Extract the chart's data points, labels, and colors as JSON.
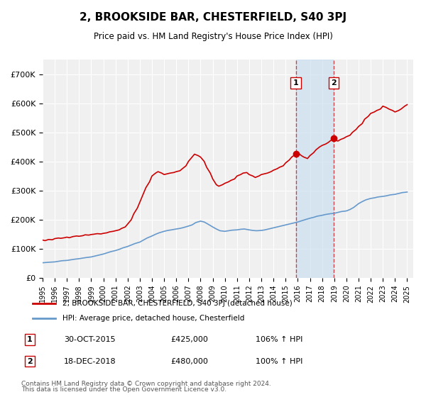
{
  "title": "2, BROOKSIDE BAR, CHESTERFIELD, S40 3PJ",
  "subtitle": "Price paid vs. HM Land Registry's House Price Index (HPI)",
  "title_fontsize": 13,
  "subtitle_fontsize": 10,
  "background_color": "#ffffff",
  "plot_background_color": "#f0f0f0",
  "grid_color": "#ffffff",
  "red_line_color": "#cc0000",
  "blue_line_color": "#6699cc",
  "shade_color": "#cce0f0",
  "marker_color": "#cc0000",
  "ylim": [
    0,
    750000
  ],
  "yticks": [
    0,
    100000,
    200000,
    300000,
    400000,
    500000,
    600000,
    700000
  ],
  "ytick_labels": [
    "£0",
    "£100K",
    "£200K",
    "£300K",
    "£400K",
    "£500K",
    "£600K",
    "£700K"
  ],
  "xlim_start": 1995.0,
  "xlim_end": 2025.5,
  "xticks": [
    1995,
    1996,
    1997,
    1998,
    1999,
    2000,
    2001,
    2002,
    2003,
    2004,
    2005,
    2006,
    2007,
    2008,
    2009,
    2010,
    2011,
    2012,
    2013,
    2014,
    2015,
    2016,
    2017,
    2018,
    2019,
    2020,
    2021,
    2022,
    2023,
    2024,
    2025
  ],
  "event1_x": 2015.83,
  "event1_label": "1",
  "event1_date": "30-OCT-2015",
  "event1_price": "£425,000",
  "event1_hpi": "106% ↑ HPI",
  "event2_x": 2018.96,
  "event2_label": "2",
  "event2_date": "18-DEC-2018",
  "event2_price": "£480,000",
  "event2_hpi": "100% ↑ HPI",
  "legend_line1": "2, BROOKSIDE BAR, CHESTERFIELD, S40 3PJ (detached house)",
  "legend_line2": "HPI: Average price, detached house, Chesterfield",
  "footer1": "Contains HM Land Registry data © Crown copyright and database right 2024.",
  "footer2": "This data is licensed under the Open Government Licence v3.0.",
  "red_x": [
    1995.0,
    1995.2,
    1995.5,
    1995.8,
    1996.0,
    1996.3,
    1996.5,
    1996.8,
    1997.0,
    1997.2,
    1997.5,
    1997.8,
    1998.0,
    1998.3,
    1998.5,
    1998.8,
    1999.0,
    1999.2,
    1999.5,
    1999.8,
    2000.0,
    2000.3,
    2000.5,
    2000.8,
    2001.0,
    2001.3,
    2001.5,
    2001.8,
    2002.0,
    2002.3,
    2002.5,
    2002.8,
    2003.0,
    2003.3,
    2003.5,
    2003.8,
    2004.0,
    2004.3,
    2004.5,
    2004.8,
    2005.0,
    2005.3,
    2005.5,
    2005.8,
    2006.0,
    2006.3,
    2006.5,
    2006.8,
    2007.0,
    2007.3,
    2007.5,
    2007.8,
    2008.0,
    2008.3,
    2008.5,
    2008.8,
    2009.0,
    2009.3,
    2009.5,
    2009.8,
    2010.0,
    2010.3,
    2010.5,
    2010.8,
    2011.0,
    2011.3,
    2011.5,
    2011.8,
    2012.0,
    2012.3,
    2012.5,
    2012.8,
    2013.0,
    2013.3,
    2013.5,
    2013.8,
    2014.0,
    2014.3,
    2014.5,
    2014.8,
    2015.0,
    2015.3,
    2015.5,
    2015.83,
    2016.0,
    2016.3,
    2016.5,
    2016.8,
    2017.0,
    2017.3,
    2017.5,
    2017.8,
    2018.0,
    2018.3,
    2018.5,
    2018.96,
    2019.0,
    2019.3,
    2019.5,
    2019.8,
    2020.0,
    2020.3,
    2020.5,
    2020.8,
    2021.0,
    2021.3,
    2021.5,
    2021.8,
    2022.0,
    2022.3,
    2022.5,
    2022.8,
    2023.0,
    2023.3,
    2023.5,
    2023.8,
    2024.0,
    2024.3,
    2024.5,
    2024.8,
    2025.0
  ],
  "red_y": [
    130000,
    128000,
    132000,
    131000,
    135000,
    137000,
    136000,
    138000,
    140000,
    138000,
    142000,
    144000,
    143000,
    145000,
    148000,
    147000,
    149000,
    150000,
    152000,
    151000,
    153000,
    155000,
    158000,
    160000,
    162000,
    165000,
    170000,
    175000,
    185000,
    200000,
    220000,
    240000,
    260000,
    290000,
    310000,
    330000,
    350000,
    360000,
    365000,
    360000,
    355000,
    358000,
    360000,
    362000,
    365000,
    368000,
    375000,
    385000,
    400000,
    415000,
    425000,
    420000,
    415000,
    400000,
    380000,
    360000,
    340000,
    320000,
    315000,
    320000,
    325000,
    330000,
    335000,
    340000,
    350000,
    355000,
    360000,
    362000,
    355000,
    350000,
    345000,
    350000,
    355000,
    358000,
    360000,
    365000,
    370000,
    375000,
    380000,
    385000,
    395000,
    405000,
    415000,
    425000,
    430000,
    420000,
    415000,
    410000,
    420000,
    430000,
    440000,
    450000,
    455000,
    460000,
    465000,
    480000,
    475000,
    470000,
    475000,
    480000,
    485000,
    490000,
    500000,
    510000,
    520000,
    530000,
    545000,
    555000,
    565000,
    570000,
    575000,
    580000,
    590000,
    585000,
    580000,
    575000,
    570000,
    575000,
    580000,
    590000,
    595000
  ],
  "blue_x": [
    1995.0,
    1995.3,
    1995.6,
    1996.0,
    1996.3,
    1996.6,
    1997.0,
    1997.3,
    1997.6,
    1998.0,
    1998.3,
    1998.6,
    1999.0,
    1999.3,
    1999.6,
    2000.0,
    2000.3,
    2000.6,
    2001.0,
    2001.3,
    2001.6,
    2002.0,
    2002.3,
    2002.6,
    2003.0,
    2003.3,
    2003.6,
    2004.0,
    2004.3,
    2004.6,
    2005.0,
    2005.3,
    2005.6,
    2006.0,
    2006.3,
    2006.6,
    2007.0,
    2007.3,
    2007.6,
    2008.0,
    2008.3,
    2008.6,
    2009.0,
    2009.3,
    2009.6,
    2010.0,
    2010.3,
    2010.6,
    2011.0,
    2011.3,
    2011.6,
    2012.0,
    2012.3,
    2012.6,
    2013.0,
    2013.3,
    2013.6,
    2014.0,
    2014.3,
    2014.6,
    2015.0,
    2015.3,
    2015.6,
    2016.0,
    2016.3,
    2016.6,
    2017.0,
    2017.3,
    2017.6,
    2018.0,
    2018.3,
    2018.6,
    2019.0,
    2019.3,
    2019.6,
    2020.0,
    2020.3,
    2020.6,
    2021.0,
    2021.3,
    2021.6,
    2022.0,
    2022.3,
    2022.6,
    2023.0,
    2023.3,
    2023.6,
    2024.0,
    2024.3,
    2024.6,
    2025.0
  ],
  "blue_y": [
    52000,
    53000,
    54000,
    55000,
    57000,
    59000,
    60000,
    62000,
    64000,
    66000,
    68000,
    70000,
    72000,
    75000,
    78000,
    82000,
    86000,
    90000,
    94000,
    98000,
    103000,
    108000,
    113000,
    118000,
    123000,
    130000,
    137000,
    144000,
    150000,
    155000,
    160000,
    163000,
    165000,
    168000,
    170000,
    173000,
    178000,
    182000,
    190000,
    195000,
    192000,
    185000,
    175000,
    168000,
    162000,
    160000,
    162000,
    164000,
    165000,
    167000,
    168000,
    165000,
    163000,
    162000,
    163000,
    165000,
    168000,
    172000,
    175000,
    178000,
    182000,
    185000,
    188000,
    192000,
    196000,
    200000,
    205000,
    208000,
    212000,
    215000,
    218000,
    220000,
    222000,
    225000,
    228000,
    230000,
    235000,
    242000,
    255000,
    262000,
    268000,
    273000,
    275000,
    278000,
    280000,
    282000,
    285000,
    287000,
    290000,
    293000,
    295000
  ]
}
